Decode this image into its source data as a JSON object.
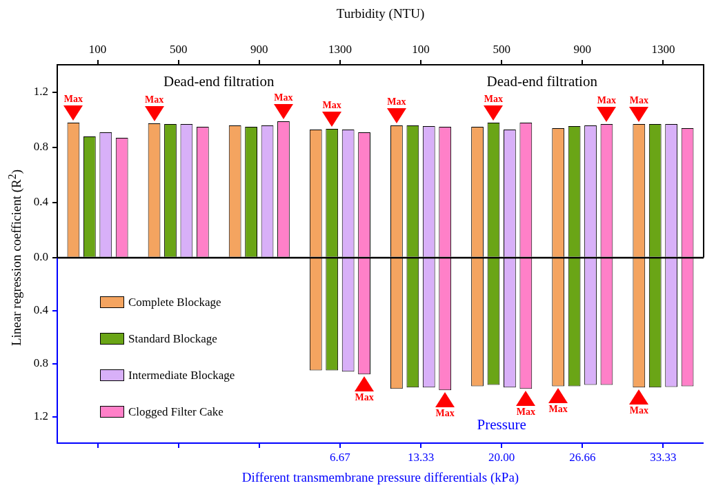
{
  "chart_data": [
    {
      "type": "bar",
      "xlabel": "Turbidity (NTU)",
      "ylabel": "Linear regression coefficient (R$^{2}$)",
      "categories": [
        "100",
        "500",
        "900",
        "1300",
        "100",
        "500",
        "900",
        "1300"
      ],
      "series": [
        {
          "color": "#f4a460",
          "values": [
            0.98,
            0.975,
            0.96,
            0.93,
            0.96,
            0.95,
            0.94,
            0.97
          ]
        },
        {
          "color": "#6aa516",
          "values": [
            0.88,
            0.97,
            0.95,
            0.935,
            0.96,
            0.98,
            0.955,
            0.97
          ]
        },
        {
          "color": "#d8b0f8",
          "values": [
            0.91,
            0.97,
            0.96,
            0.93,
            0.955,
            0.93,
            0.96,
            0.97
          ]
        },
        {
          "color": "#ff80c8",
          "values": [
            0.87,
            0.95,
            0.99,
            0.91,
            0.95,
            0.98,
            0.97,
            0.94
          ]
        }
      ],
      "ylim": [
        0,
        1.4
      ],
      "yticks": [
        {
          "value": 0,
          "label": "0.0"
        },
        0.4,
        0.8,
        1.2
      ],
      "annotations": [
        "Dead-end filtration",
        "Dead-end filtration",
        "Max",
        "Max",
        "Max",
        "Max",
        "Max",
        "Max",
        "Max",
        "Max"
      ],
      "legend": false
    },
    {
      "type": "bar",
      "xlabel": "Different transmembrane pressure differentials (kPa)",
      "categories": [
        null,
        null,
        null,
        "6.67",
        "13.33",
        "20.00",
        "26.66",
        "33.33"
      ],
      "series": [
        {
          "name": "Complete Blockage",
          "color": "#f4a460",
          "values": [
            null,
            null,
            null,
            -0.85,
            -0.99,
            -0.97,
            -0.97,
            -0.98
          ]
        },
        {
          "name": "Standard Blockage",
          "color": "#6aa516",
          "values": [
            null,
            null,
            null,
            -0.85,
            -0.98,
            -0.96,
            -0.97,
            -0.98
          ]
        },
        {
          "name": "Intermediate Blockage",
          "color": "#d8b0f8",
          "values": [
            null,
            null,
            null,
            -0.86,
            -0.98,
            -0.98,
            -0.96,
            -0.975
          ]
        },
        {
          "name": "Clogged Filter Cake",
          "color": "#ff80c8",
          "values": [
            null,
            null,
            null,
            -0.88,
            -1.0,
            -0.99,
            -0.96,
            -0.97
          ]
        }
      ],
      "ylim": [
        -1.4,
        0
      ],
      "yticks": [
        {
          "value": -0.4,
          "label": "0.4"
        },
        {
          "value": -0.8,
          "label": "0.8"
        },
        {
          "value": -1.2,
          "label": "1.2"
        }
      ],
      "annotations": [
        "Pressure",
        "Max",
        "Max",
        "Max",
        "Max",
        "Max"
      ],
      "legend": "left"
    }
  ]
}
